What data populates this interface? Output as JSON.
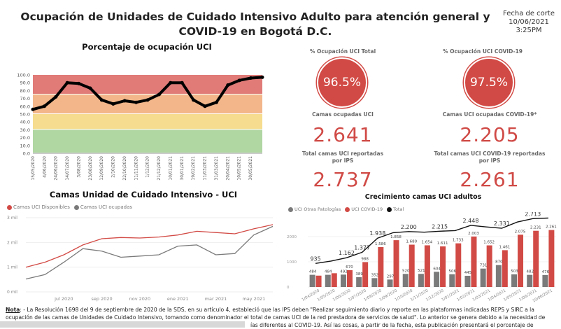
{
  "header": {
    "title": "Ocupación de Unidades de Cuidado Intensivo Adulto para atención general y COVID-19 en Bogotá D.C.",
    "fecha_label": "Fecha de corte",
    "fecha_date": "10/06/2021",
    "fecha_time": "3:25PM"
  },
  "kpis": {
    "ocup_total_label": "% Ocupación UCI Total",
    "ocup_total": "96.5%",
    "ocup_covid_label": "% Ocupación UCI COVID-19",
    "ocup_covid": "97.5%",
    "camas_ocupadas_label": "Camas ocupadas UCI",
    "camas_ocupadas": "2.641",
    "camas_covid_label": "Camas UCI ocupadas COVID-19*",
    "camas_covid": "2.205",
    "total_label": "Total camas UCI reportadas por IPS",
    "total": "2.737",
    "total_covid_label": "Total camas UCI COVID-19 reportadas por IPS",
    "total_covid": "2.261"
  },
  "colors": {
    "accent": "#d24a45",
    "gray": "#7a7a7a",
    "band_red": "#e07b78",
    "band_orange": "#f2b68a",
    "band_yellow": "#f5dc8e",
    "band_green": "#b0d6a2"
  },
  "chart_data": [
    {
      "type": "line",
      "title": "Porcentaje de ocupación UCI",
      "ylim": [
        0,
        100
      ],
      "yticks": [
        "0.0",
        "10.0",
        "20.0",
        "30.0",
        "40.0",
        "50.0",
        "60.0",
        "70.0",
        "80.0",
        "90.0",
        "100.0"
      ],
      "bands": [
        {
          "from": 0,
          "to": 30,
          "color": "#b0d6a2"
        },
        {
          "from": 30,
          "to": 50,
          "color": "#f5dc8e"
        },
        {
          "from": 50,
          "to": 75,
          "color": "#f2b68a"
        },
        {
          "from": 75,
          "to": 100,
          "color": "#e07b78"
        }
      ],
      "xticks": [
        "15/05/2020",
        "4/06/2020",
        "24/06/2020",
        "14/07/2020",
        "3/08/2020",
        "23/08/2020",
        "12/09/2020",
        "2/10/2020",
        "22/10/2020",
        "11/11/2020",
        "1/12/2020",
        "21/12/2020",
        "10/01/2021",
        "30/01/2021",
        "19/02/2021",
        "11/03/2021",
        "31/03/2021",
        "20/04/2021",
        "10/05/2021",
        "30/05/2021"
      ],
      "values": [
        56,
        60,
        72,
        90,
        89,
        83,
        68,
        63,
        67,
        65,
        68,
        75,
        90,
        90,
        68,
        60,
        65,
        87,
        93,
        96,
        97
      ]
    },
    {
      "type": "line",
      "title": "Camas Unidad de Cuidado Intensivo - UCI",
      "yticks": [
        "0 mil",
        "1 mil",
        "2 mil",
        "3 mil"
      ],
      "ylim": [
        0,
        3000
      ],
      "xticks": [
        "jul 2020",
        "sep 2020",
        "nov 2020",
        "ene 2021",
        "mar 2021",
        "may 2021"
      ],
      "x": [
        "may 2020",
        "jun 2020",
        "jul 2020",
        "ago 2020",
        "sep 2020",
        "oct 2020",
        "nov 2020",
        "dic 2020",
        "ene 2021",
        "feb 2021",
        "mar 2021",
        "abr 2021",
        "may 2021",
        "jun 2021"
      ],
      "series": [
        {
          "name": "Camas UCI Disponibles",
          "color": "#d24a45",
          "values": [
            1000,
            1200,
            1500,
            1900,
            2150,
            2200,
            2180,
            2220,
            2300,
            2450,
            2400,
            2350,
            2550,
            2720
          ]
        },
        {
          "name": "Camas UCI ocupadas",
          "color": "#7a7a7a",
          "values": [
            520,
            700,
            1200,
            1750,
            1650,
            1400,
            1450,
            1500,
            1850,
            1900,
            1500,
            1550,
            2300,
            2650
          ]
        }
      ]
    },
    {
      "type": "bar",
      "title": "Crecimiento camas UCI adultos",
      "ylim": [
        0,
        2800
      ],
      "yticks": [
        "0",
        "1000",
        "2000"
      ],
      "categories": [
        "1/04/2020",
        "1/05/2020",
        "1/06/2020",
        "1/07/2020",
        "1/08/2020",
        "1/09/2020",
        "1/10/2020",
        "1/11/2020",
        "1/12/2020",
        "1/01/2021",
        "1/02/2021",
        "1/03/2021",
        "1/04/2021",
        "1/05/2021",
        "1/06/2021",
        "10/06/2021"
      ],
      "series": [
        {
          "name": "UCI Otras Patologías",
          "color": "#7a7a7a",
          "values": [
            484,
            484,
            492,
            389,
            352,
            297,
            520,
            521,
            604,
            506,
            445,
            731,
            870,
            503,
            482,
            476
          ]
        },
        {
          "name": "UCI COVID-19",
          "color": "#d24a45",
          "values": [
            451,
            546,
            670,
            988,
            1586,
            1858,
            1680,
            1654,
            1611,
            1733,
            2003,
            1652,
            1461,
            2075,
            2231,
            2261
          ],
          "labels": [
            null,
            null,
            "670",
            "988",
            "1.586",
            "1.858",
            "1.680",
            "1.654",
            "1.611",
            "1.733",
            "2.003",
            "1.652",
            "1.461",
            "2.075",
            "2.231",
            "2.261"
          ]
        },
        {
          "name": "Total",
          "color": "#111111",
          "values": [
            935,
            1030,
            1162,
            1377,
            1938,
            2155,
            2200,
            2175,
            2215,
            2239,
            2448,
            2383,
            2331,
            2578,
            2713,
            2737
          ],
          "labels": [
            "935",
            null,
            "1.162",
            "1.377",
            "1.938",
            null,
            "2.200",
            null,
            "2.215",
            null,
            "2.448",
            null,
            "2.331",
            null,
            "2.713",
            null
          ]
        }
      ]
    }
  ],
  "nota": {
    "label": "Nota",
    "line1": ": - La Resolución 1698 del 9 de septiembre de 2020 de la SDS, en su artículo 4, estableció que las IPS deben \"Realizar seguimiento diario y reporte en las plataformas indicadas REPS y SIRC a la",
    "line2": "ocupación de las camas de Unidades de Cuidado Intensivo, tomando como denominador el total de camas UCI de la red prestadora de servicios de salud\". Lo anterior se genera debido a la necesidad de",
    "line3": "ías diferentes al COVID-19. Así las cosas, a partir de la fecha, esta publicación presentará el porcentaje de"
  }
}
